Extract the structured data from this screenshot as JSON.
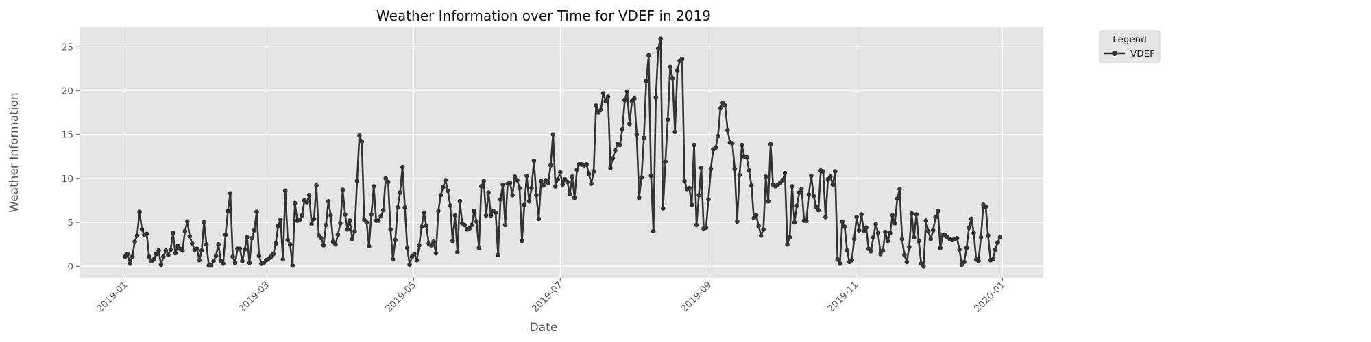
{
  "chart_data": {
    "type": "line",
    "title": "Weather Information over Time for VDEF in 2019",
    "xlabel": "Date",
    "ylabel": "Weather Information",
    "xlim": [
      "2018-12-13",
      "2020-01-18"
    ],
    "ylim": [
      -1.3,
      27.2
    ],
    "x_ticks": [
      "2019-01",
      "2019-03",
      "2019-05",
      "2019-07",
      "2019-09",
      "2019-11",
      "2020-01"
    ],
    "y_ticks": [
      0,
      5,
      10,
      15,
      20,
      25
    ],
    "grid": true,
    "background": "#e5e5e5",
    "line_color": "#333333",
    "legend": {
      "title": "Legend",
      "position": "outside-top-right"
    },
    "series": [
      {
        "name": "VDEF",
        "x_start": "2019-01-01",
        "x_end": "2019-12-31",
        "values": [
          1.1,
          1.4,
          0.3,
          1.1,
          2.8,
          3.5,
          6.2,
          4.2,
          3.6,
          3.7,
          1.1,
          0.6,
          0.8,
          1.4,
          1.8,
          0.2,
          1.1,
          1.8,
          1.3,
          1.9,
          3.8,
          1.5,
          2.3,
          2.0,
          1.8,
          4.0,
          5.1,
          3.4,
          2.6,
          1.9,
          2.0,
          0.7,
          1.8,
          5.0,
          2.5,
          0.1,
          0.1,
          0.6,
          1.2,
          2.5,
          0.6,
          0.3,
          3.6,
          6.3,
          8.3,
          1.1,
          0.4,
          2.0,
          2.0,
          0.6,
          1.9,
          3.3,
          0.4,
          3.2,
          4.1,
          6.2,
          1.2,
          0.3,
          0.4,
          0.7,
          0.9,
          1.1,
          1.4,
          2.6,
          4.6,
          5.3,
          0.8,
          8.6,
          3.0,
          2.5,
          0.1,
          7.2,
          5.2,
          5.3,
          5.8,
          7.5,
          7.3,
          8.1,
          4.8,
          5.4,
          9.2,
          3.5,
          3.2,
          2.4,
          4.7,
          7.4,
          5.8,
          2.8,
          2.5,
          3.6,
          4.9,
          8.7,
          5.9,
          4.2,
          5.2,
          3.1,
          4.0,
          9.7,
          14.9,
          14.2,
          5.3,
          5.0,
          2.3,
          5.9,
          9.1,
          5.2,
          5.2,
          5.7,
          6.4,
          10.0,
          9.6,
          4.2,
          0.8,
          3.0,
          6.7,
          8.4,
          11.3,
          6.7,
          2.1,
          0.2,
          1.1,
          1.4,
          0.7,
          2.4,
          4.5,
          6.1,
          4.6,
          2.6,
          2.4,
          2.8,
          1.5,
          6.3,
          8.1,
          9.0,
          9.8,
          8.6,
          6.9,
          2.9,
          5.8,
          1.6,
          7.4,
          4.9,
          4.7,
          4.2,
          4.3,
          4.7,
          6.3,
          5.1,
          2.1,
          9.1,
          9.7,
          5.8,
          8.4,
          5.8,
          6.3,
          6.1,
          1.3,
          7.6,
          9.3,
          4.7,
          9.4,
          9.5,
          8.1,
          10.2,
          9.8,
          8.9,
          2.9,
          7.0,
          10.3,
          7.4,
          8.9,
          12.0,
          8.1,
          5.4,
          9.7,
          9.2,
          9.8,
          9.5,
          11.5,
          15.0,
          9.1,
          9.9,
          10.7,
          9.3,
          9.9,
          9.6,
          8.2,
          10.2,
          7.8,
          11.0,
          11.6,
          11.6,
          11.5,
          11.6,
          10.5,
          9.4,
          10.8,
          18.3,
          17.5,
          17.8,
          19.7,
          18.8,
          19.3,
          11.2,
          12.3,
          13.2,
          13.9,
          13.8,
          15.6,
          18.9,
          19.9,
          16.2,
          18.8,
          19.1,
          15.0,
          7.8,
          10.1,
          14.6,
          21.1,
          24.0,
          10.3,
          4.0,
          19.2,
          24.8,
          25.9,
          6.6,
          11.9,
          16.7,
          22.7,
          21.4,
          15.3,
          22.3,
          23.4,
          23.6,
          9.7,
          8.8,
          8.9,
          7.0,
          13.8,
          4.7,
          8.1,
          11.2,
          4.3,
          4.4,
          7.6,
          11.1,
          13.3,
          13.5,
          14.8,
          18.0,
          18.6,
          18.3,
          15.5,
          14.1,
          14.0,
          11.1,
          5.1,
          10.4,
          13.8,
          12.5,
          12.4,
          10.9,
          9.2,
          5.5,
          5.8,
          4.6,
          3.5,
          4.2,
          10.2,
          7.4,
          13.9,
          9.3,
          9.1,
          9.3,
          9.5,
          9.8,
          10.6,
          2.5,
          3.3,
          9.1,
          5.0,
          6.9,
          8.4,
          8.8,
          5.2,
          5.2,
          8.2,
          10.3,
          8.0,
          6.8,
          6.4,
          10.9,
          10.8,
          5.6,
          9.9,
          10.2,
          9.3,
          10.8,
          0.8,
          0.3,
          5.1,
          4.5,
          1.8,
          0.5,
          0.7,
          3.1,
          5.6,
          4.1,
          5.9,
          4.0,
          4.4,
          2.0,
          1.7,
          3.3,
          4.8,
          3.8,
          1.4,
          1.8,
          3.9,
          2.9,
          3.8,
          5.8,
          4.9,
          7.7,
          8.8,
          3.1,
          1.3,
          0.5,
          2.2,
          6.0,
          3.3,
          5.9,
          2.9,
          0.3,
          0.0,
          5.2,
          4.0,
          3.1,
          4.1,
          5.6,
          6.3,
          2.1,
          3.5,
          3.6,
          3.3,
          3.1,
          3.0,
          3.1,
          3.2,
          1.9,
          0.2,
          0.5,
          2.1,
          4.4,
          5.4,
          3.8,
          0.8,
          0.6,
          3.3,
          7.0,
          6.8,
          3.5,
          0.7,
          0.8,
          1.9,
          2.7,
          3.3
        ]
      }
    ]
  }
}
